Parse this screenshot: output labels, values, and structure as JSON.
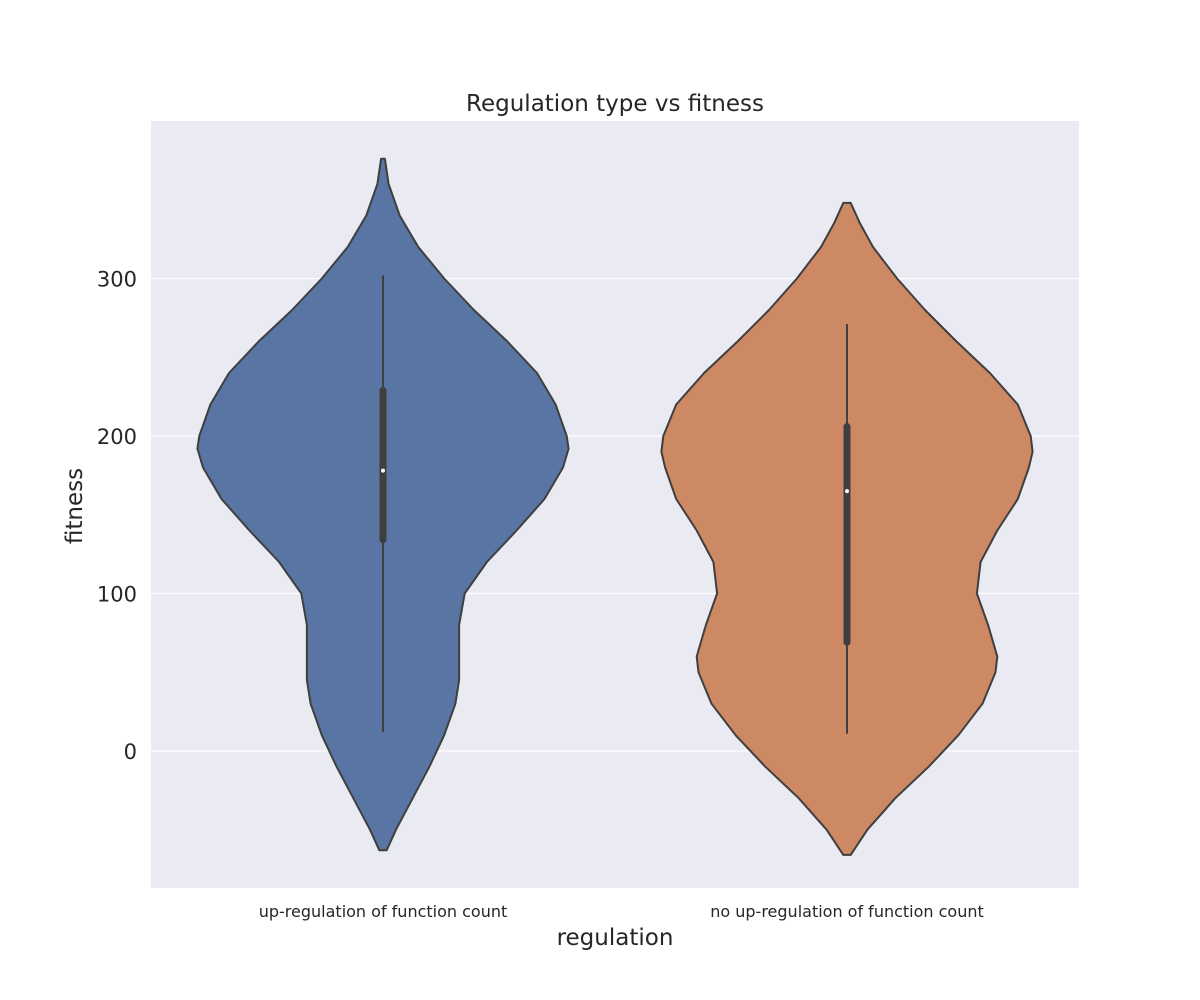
{
  "chart_data": {
    "type": "violin",
    "title": "Regulation type vs fitness",
    "xlabel": "regulation",
    "ylabel": "fitness",
    "ylim": [
      -87,
      400
    ],
    "yticks": [
      0,
      100,
      200,
      300
    ],
    "grid": true,
    "background_color": "#eaeaf2",
    "categories": [
      "up-regulation of function count",
      "no up-regulation of function count"
    ],
    "colors": [
      "#5975a4",
      "#cc8963"
    ],
    "series": [
      {
        "category": "up-regulation of function count",
        "min": 12,
        "q1": 134,
        "median": 178,
        "q3": 229,
        "max": 302,
        "kde_min": -63,
        "kde_max": 376,
        "density": [
          [
            -63,
            0.02
          ],
          [
            -50,
            0.07
          ],
          [
            -30,
            0.16
          ],
          [
            -10,
            0.25
          ],
          [
            10,
            0.33
          ],
          [
            30,
            0.39
          ],
          [
            45,
            0.41
          ],
          [
            60,
            0.41
          ],
          [
            80,
            0.41
          ],
          [
            100,
            0.44
          ],
          [
            120,
            0.56
          ],
          [
            140,
            0.72
          ],
          [
            160,
            0.87
          ],
          [
            180,
            0.97
          ],
          [
            192,
            1.0
          ],
          [
            200,
            0.99
          ],
          [
            220,
            0.93
          ],
          [
            240,
            0.83
          ],
          [
            260,
            0.67
          ],
          [
            280,
            0.49
          ],
          [
            300,
            0.33
          ],
          [
            320,
            0.19
          ],
          [
            340,
            0.09
          ],
          [
            360,
            0.03
          ],
          [
            376,
            0.01
          ]
        ]
      },
      {
        "category": "no up-regulation of function count",
        "min": 11,
        "q1": 69,
        "median": 165,
        "q3": 206,
        "max": 271,
        "kde_min": -66,
        "kde_max": 348,
        "density": [
          [
            -66,
            0.02
          ],
          [
            -50,
            0.11
          ],
          [
            -30,
            0.26
          ],
          [
            -10,
            0.44
          ],
          [
            10,
            0.6
          ],
          [
            30,
            0.73
          ],
          [
            50,
            0.8
          ],
          [
            60,
            0.81
          ],
          [
            80,
            0.76
          ],
          [
            100,
            0.7
          ],
          [
            120,
            0.72
          ],
          [
            140,
            0.81
          ],
          [
            160,
            0.92
          ],
          [
            180,
            0.98
          ],
          [
            190,
            1.0
          ],
          [
            200,
            0.99
          ],
          [
            220,
            0.92
          ],
          [
            240,
            0.77
          ],
          [
            260,
            0.59
          ],
          [
            280,
            0.42
          ],
          [
            300,
            0.27
          ],
          [
            320,
            0.14
          ],
          [
            335,
            0.07
          ],
          [
            348,
            0.02
          ]
        ]
      }
    ]
  }
}
